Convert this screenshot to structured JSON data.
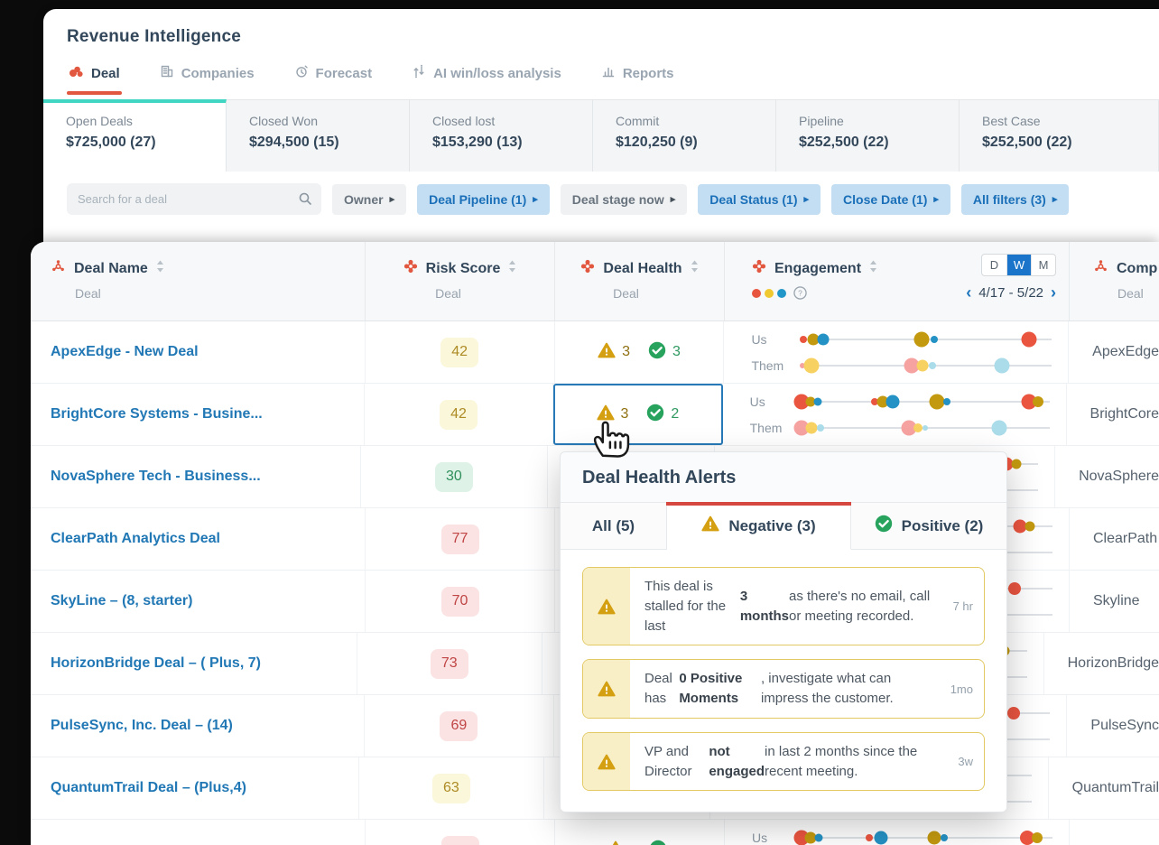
{
  "app": {
    "title": "Revenue Intelligence"
  },
  "nav_tabs": [
    {
      "id": "deal",
      "label": "Deal",
      "icon": "gong-logo",
      "active": true
    },
    {
      "id": "companies",
      "label": "Companies",
      "icon": "companies",
      "active": false
    },
    {
      "id": "forecast",
      "label": "Forecast",
      "icon": "forecast",
      "active": false
    },
    {
      "id": "ai-win-loss",
      "label": "AI win/loss analysis",
      "icon": "ai-winloss",
      "active": false
    },
    {
      "id": "reports",
      "label": "Reports",
      "icon": "reports",
      "active": false
    }
  ],
  "summary_cards": [
    {
      "label": "Open Deals",
      "value": "$725,000 (27)",
      "active": true
    },
    {
      "label": "Closed Won",
      "value": "$294,500 (15)",
      "active": false
    },
    {
      "label": "Closed lost",
      "value": "$153,290 (13)",
      "active": false
    },
    {
      "label": "Commit",
      "value": "$120,250 (9)",
      "active": false
    },
    {
      "label": "Pipeline",
      "value": "$252,500 (22)",
      "active": false
    },
    {
      "label": "Best Case",
      "value": "$252,500 (22)",
      "active": false
    }
  ],
  "filters": {
    "search_placeholder": "Search for a deal",
    "arrow": "▸",
    "pills": [
      {
        "label": "Owner",
        "active": false
      },
      {
        "label": "Deal Pipeline (1)",
        "active": true
      },
      {
        "label": "Deal stage now",
        "active": false
      },
      {
        "label": "Deal Status (1)",
        "active": true
      },
      {
        "label": "Close Date (1)",
        "active": true
      },
      {
        "label": "All filters (3)",
        "active": true
      }
    ]
  },
  "table": {
    "columns": {
      "deal_name": {
        "title": "Deal Name",
        "subtitle": "Deal"
      },
      "risk_score": {
        "title": "Risk Score",
        "subtitle": "Deal"
      },
      "deal_health": {
        "title": "Deal Health",
        "subtitle": "Deal"
      },
      "engagement": {
        "title": "Engagement"
      },
      "company": {
        "title": "Comp",
        "subtitle": "Deal"
      }
    },
    "engagement": {
      "legend_colors": [
        "#e8553e",
        "#f0c930",
        "#2196c9"
      ],
      "toggle": [
        "D",
        "W",
        "M"
      ],
      "toggle_active": "W",
      "prev": "‹",
      "date_range": "4/17 - 5/22",
      "next": "›",
      "us_label": "Us",
      "them_label": "Them"
    },
    "rows": [
      {
        "deal": "ApexEdge - New Deal",
        "risk": "42",
        "risk_level": "yellow",
        "health": {
          "neg": "3",
          "pos": "3",
          "selected": false
        },
        "us": [
          [
            0.01,
            "red",
            8
          ],
          [
            0.05,
            "gold",
            13
          ],
          [
            0.09,
            "blue",
            13
          ],
          [
            0.48,
            "gold",
            17
          ],
          [
            0.53,
            "blue",
            8
          ],
          [
            0.91,
            "red",
            17
          ]
        ],
        "them": [
          [
            0.005,
            "pink",
            6
          ],
          [
            0.04,
            "yellow",
            17
          ],
          [
            0.44,
            "pink",
            17
          ],
          [
            0.485,
            "yellow",
            13
          ],
          [
            0.525,
            "lightblue",
            8
          ],
          [
            0.8,
            "lightblue",
            17
          ]
        ],
        "company": "ApexEdge"
      },
      {
        "deal": "BrightCore Systems - Busine...",
        "risk": "42",
        "risk_level": "yellow",
        "health": {
          "neg": "3",
          "pos": "2",
          "selected": true
        },
        "us": [
          [
            0.01,
            "red",
            17
          ],
          [
            0.045,
            "gold",
            11
          ],
          [
            0.075,
            "blue",
            9
          ],
          [
            0.3,
            "red",
            8
          ],
          [
            0.335,
            "gold",
            13
          ],
          [
            0.375,
            "blue",
            15
          ],
          [
            0.55,
            "gold",
            17
          ],
          [
            0.59,
            "blue",
            8
          ],
          [
            0.92,
            "red",
            17
          ],
          [
            0.955,
            "gold",
            12
          ]
        ],
        "them": [
          [
            0.01,
            "pink",
            17
          ],
          [
            0.05,
            "yellow",
            13
          ],
          [
            0.085,
            "lightblue",
            8
          ],
          [
            0.44,
            "pink",
            17
          ],
          [
            0.475,
            "yellow",
            10
          ],
          [
            0.505,
            "lightblue",
            6
          ],
          [
            0.8,
            "lightblue",
            17
          ]
        ],
        "company": "BrightCore"
      },
      {
        "deal": "NovaSphere Tech - Business...",
        "risk": "30",
        "risk_level": "green",
        "health": null,
        "us": [
          [
            0.87,
            "red",
            15
          ],
          [
            0.91,
            "gold",
            11
          ]
        ],
        "them": [],
        "company": "NovaSphere"
      },
      {
        "deal": "ClearPath Analytics Deal",
        "risk": "77",
        "risk_level": "red",
        "health": null,
        "us": [
          [
            0.87,
            "red",
            15
          ],
          [
            0.91,
            "gold",
            11
          ]
        ],
        "them": [],
        "company": "ClearPath"
      },
      {
        "deal": "SkyLine – (8, starter)",
        "risk": "70",
        "risk_level": "red",
        "health": null,
        "us": [
          [
            0.85,
            "red",
            14
          ]
        ],
        "them": [],
        "company": "Skyline"
      },
      {
        "deal": "HorizonBridge Deal – ( Plus, 7)",
        "risk": "73",
        "risk_level": "red",
        "health": null,
        "us": [
          [
            0.87,
            "red",
            15
          ],
          [
            0.91,
            "gold",
            11
          ]
        ],
        "them": [],
        "company": "HorizonBridge"
      },
      {
        "deal": "PulseSync, Inc. Deal – (14)",
        "risk": "69",
        "risk_level": "red",
        "health": null,
        "us": [
          [
            0.855,
            "red",
            14
          ]
        ],
        "them": [],
        "company": "PulseSync"
      },
      {
        "deal": "QuantumTrail Deal – (Plus,4)",
        "risk": "63",
        "risk_level": "yellow",
        "health": null,
        "us": [
          [
            0.85,
            "red",
            14
          ]
        ],
        "them": [],
        "company": "QuantumTrail"
      },
      {
        "deal": "",
        "risk": "",
        "risk_level": "red",
        "health": {
          "neg": "",
          "pos": "",
          "selected": false
        },
        "us": [
          [
            0.0,
            "red",
            17
          ],
          [
            0.035,
            "gold",
            13
          ],
          [
            0.07,
            "blue",
            9
          ],
          [
            0.27,
            "red",
            8
          ],
          [
            0.315,
            "blue",
            15
          ],
          [
            0.53,
            "gold",
            15
          ],
          [
            0.57,
            "blue",
            8
          ],
          [
            0.9,
            "red",
            16
          ],
          [
            0.94,
            "gold",
            12
          ]
        ],
        "them": [],
        "company": ""
      }
    ]
  },
  "popup": {
    "title": "Deal Health Alerts",
    "tabs": [
      {
        "label": "All (5)",
        "icon": null,
        "active": false
      },
      {
        "label": "Negative (3)",
        "icon": "warning",
        "active": true
      },
      {
        "label": "Positive (2)",
        "icon": "check",
        "active": false
      }
    ],
    "alerts": [
      {
        "parts": [
          {
            "t": "This deal is stalled for the last "
          },
          {
            "t": "3 months",
            "b": true
          },
          {
            "t": " as there's no email, call or meeting recorded."
          }
        ],
        "time": "7 hr"
      },
      {
        "parts": [
          {
            "t": "Deal has "
          },
          {
            "t": "0 Positive Moments",
            "b": true
          },
          {
            "t": ", investigate what can impress the customer."
          }
        ],
        "time": "1mo"
      },
      {
        "parts": [
          {
            "t": "VP and Director "
          },
          {
            "t": "not engaged",
            "b": true
          },
          {
            "t": " in last 2 months since the recent meeting."
          }
        ],
        "time": "3w"
      }
    ]
  },
  "colors": {
    "accent_red": "#e2573f",
    "teal": "#41d6c3",
    "filter_blue_bg": "#c3def2",
    "filter_blue_text": "#1a6fb8",
    "toggle_active_blue": "#1a74c9",
    "dots": {
      "red": "#ea5540",
      "gold": "#c3990f",
      "blue": "#2592c5",
      "pink": "#f5a2a0",
      "yellow": "#f7d263",
      "lightblue": "#aadcea"
    }
  }
}
